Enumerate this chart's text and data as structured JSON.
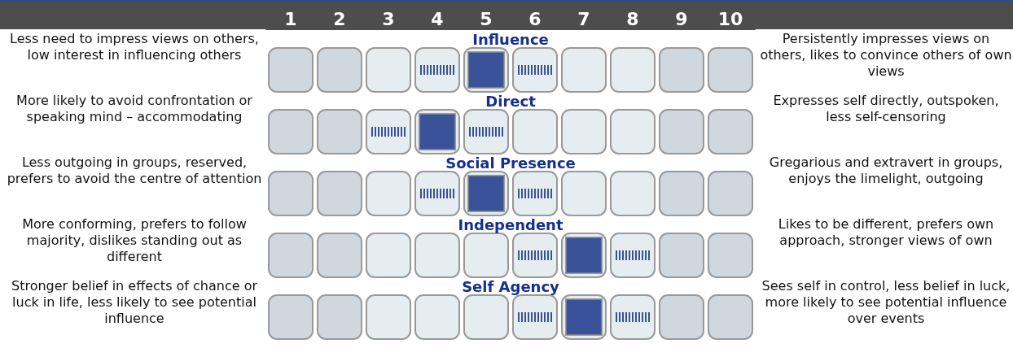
{
  "chart_data": {
    "type": "scatter",
    "orientation": "horizontal",
    "marker": "square",
    "color": "#0f2a85",
    "categories": [
      "Influence",
      "Direct",
      "Social Presence",
      "Independent",
      "Self Agency"
    ],
    "values": [
      5,
      4,
      5,
      7,
      7
    ],
    "xlim": [
      0.5,
      10.5
    ],
    "xticks": [
      1,
      2,
      3,
      4,
      5,
      6,
      7,
      8,
      9,
      10
    ],
    "annotations": [
      "Less need to impress views on others, low interest in influencing others",
      "More likely to avoid confrontation or speaking mind – accommodating",
      "Less outgoing in groups, reserved, prefers to avoid the centre of attention",
      "More conforming, prefers to follow majority, dislikes standing out as different",
      "Stronger belief in effects of chance or luck in life, less likely to see potential influence",
      "Persistently impresses views on others, likes to convince others of own views",
      "Expresses self directly, outspoken, less self-censoring",
      "Gregarious and extravert in groups, enjoys the limelight, outgoing",
      "Likes to be different, prefers own approach, stronger views of own",
      "Sees self in control, less belief in luck, more likely to see potential influence over events"
    ]
  }
}
